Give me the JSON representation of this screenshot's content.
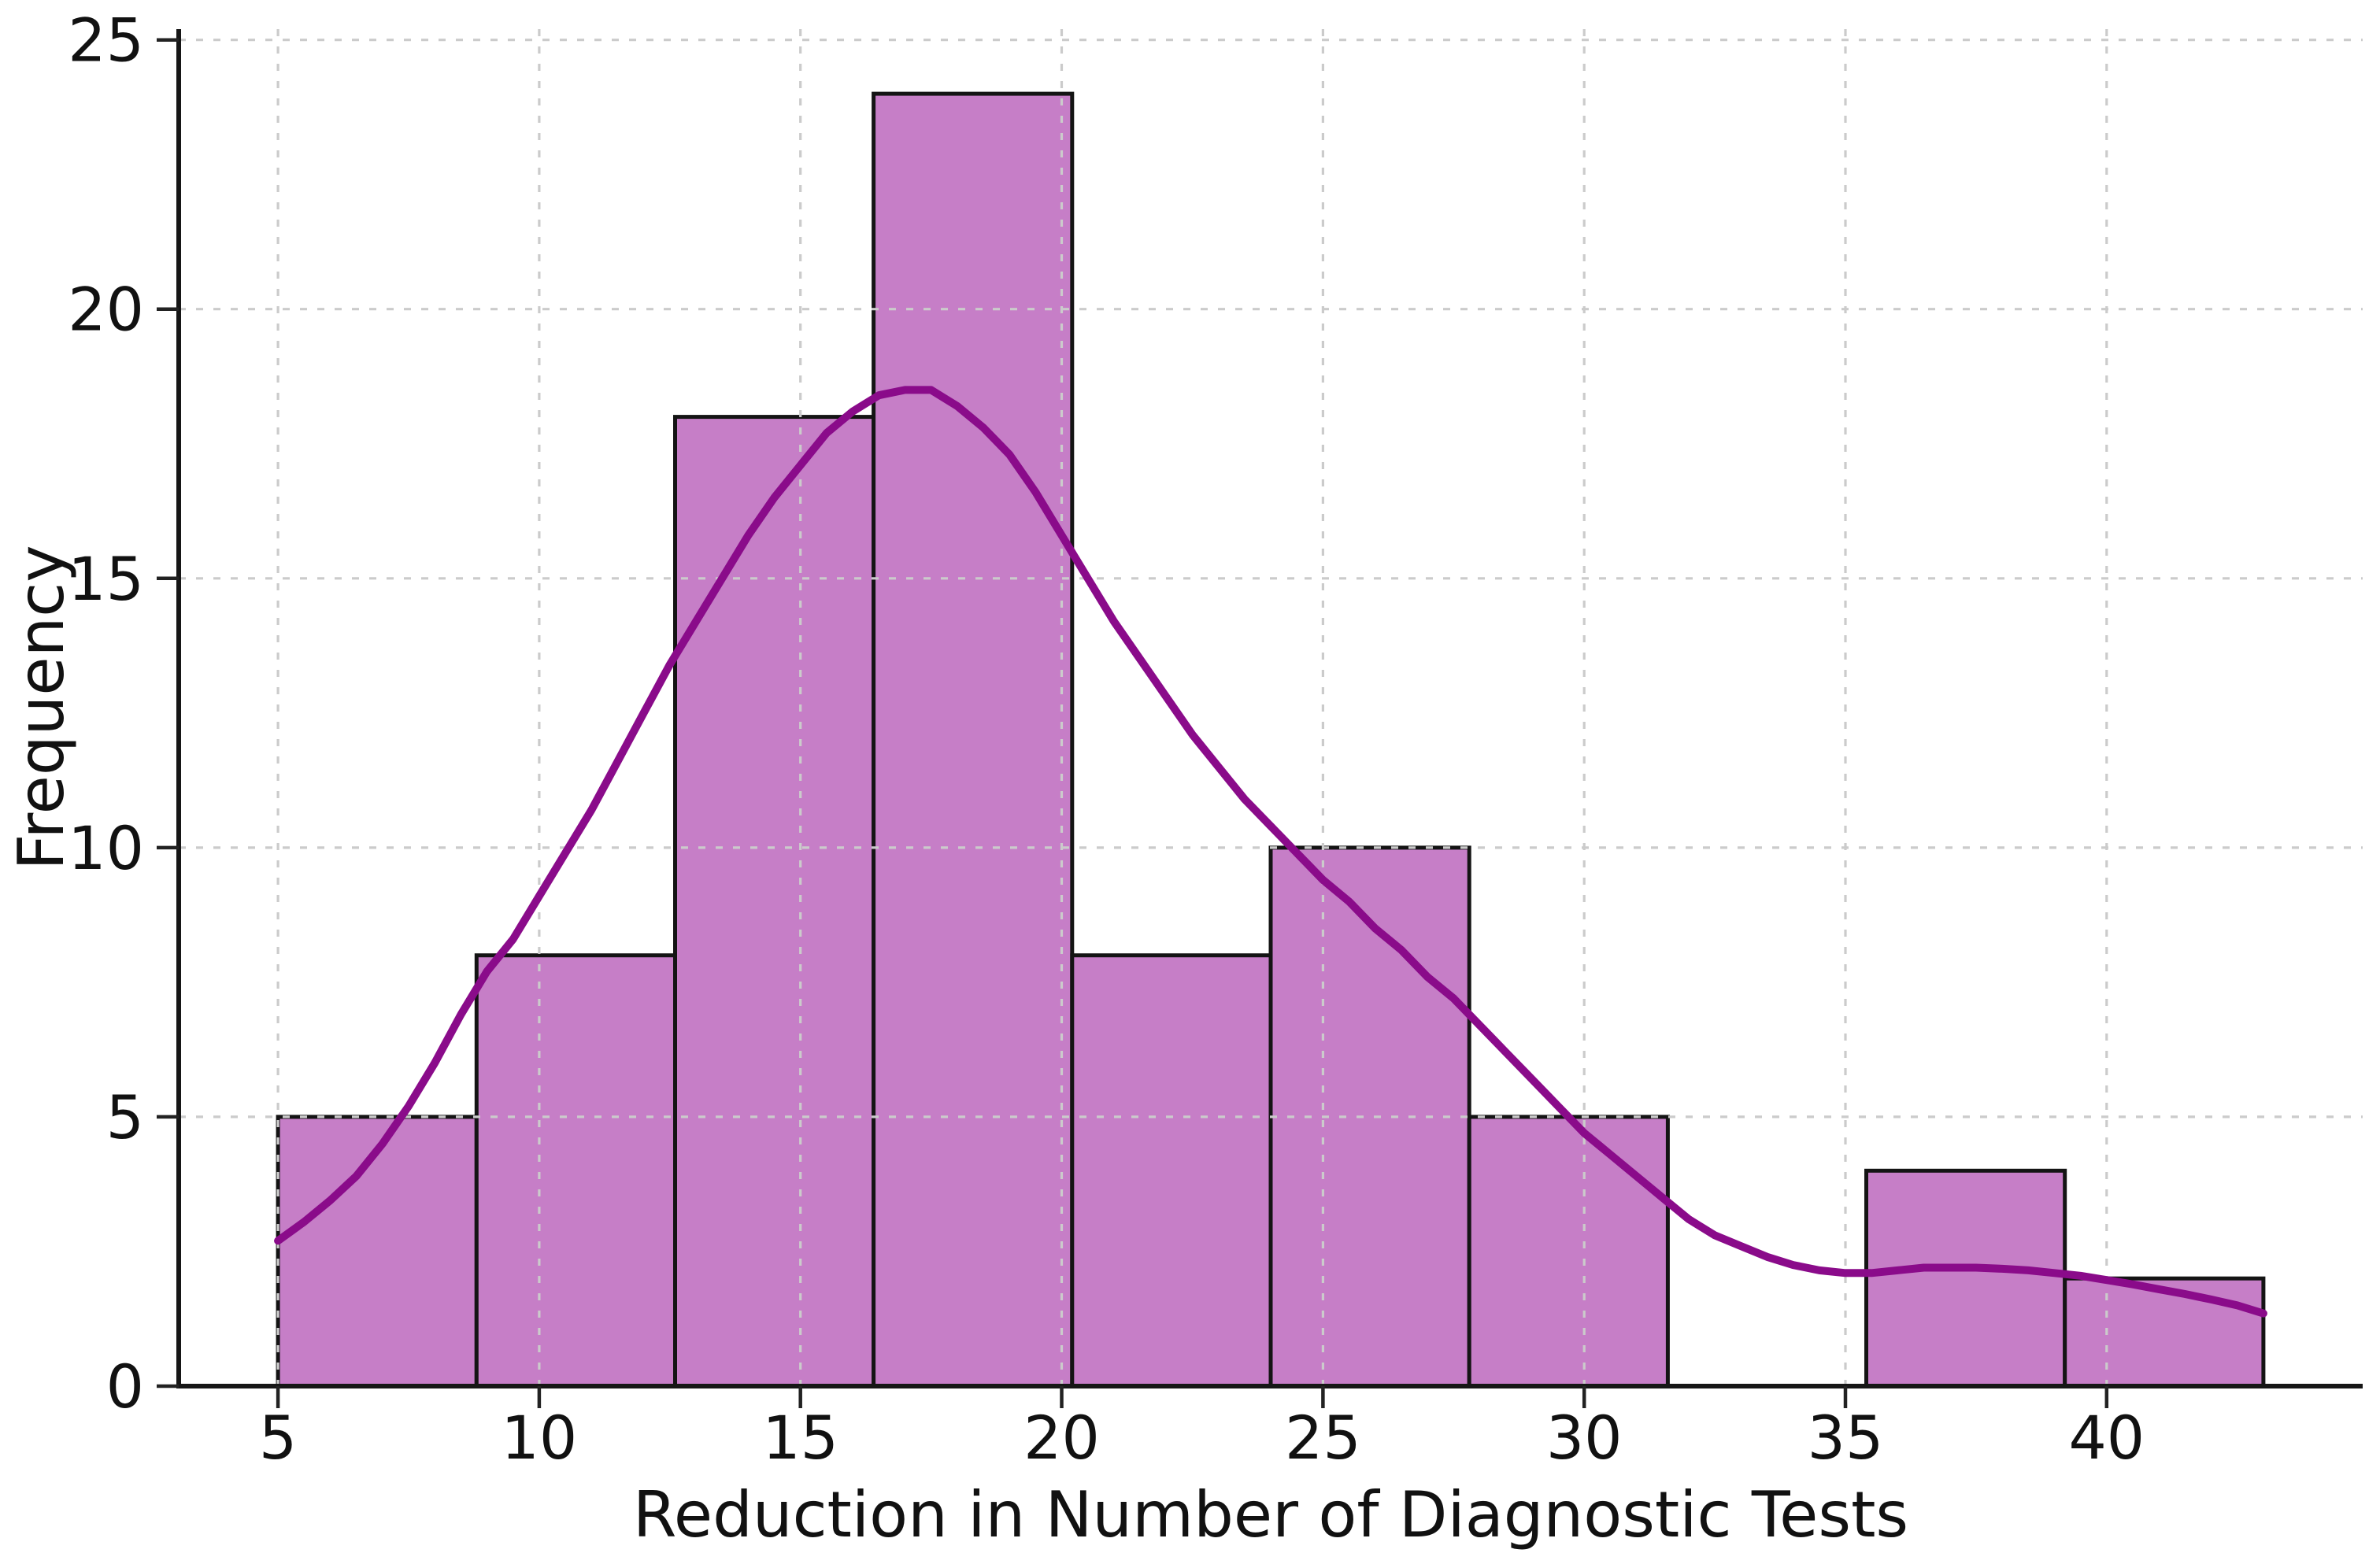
{
  "figure": {
    "background": "#ffffff"
  },
  "chart_data": {
    "type": "bar",
    "subtype": "histogram_with_kde",
    "title": "",
    "xlabel": "Reduction in Number of Diagnostic Tests",
    "ylabel": "Frequency",
    "bin_edges": [
      5.0,
      8.8,
      12.6,
      16.4,
      20.2,
      24.0,
      27.8,
      31.6,
      35.4,
      39.2,
      43.0
    ],
    "counts": [
      5,
      8,
      18,
      24,
      8,
      10,
      5,
      0,
      4,
      2
    ],
    "series": [
      {
        "name": "kde-curve",
        "x": [
          5,
          5.5,
          6,
          6.5,
          7,
          7.5,
          8,
          8.5,
          9,
          9.5,
          10,
          10.5,
          11,
          11.5,
          12,
          12.5,
          13,
          13.5,
          14,
          14.5,
          15,
          15.5,
          16,
          16.5,
          17,
          17.5,
          18,
          18.5,
          19,
          19.5,
          20,
          20.5,
          21,
          21.5,
          22,
          22.5,
          23,
          23.5,
          24,
          24.5,
          25,
          25.5,
          26,
          26.5,
          27,
          27.5,
          28,
          28.5,
          29,
          29.5,
          30,
          30.5,
          31,
          31.5,
          32,
          32.5,
          33,
          33.5,
          34,
          34.5,
          35,
          35.5,
          36,
          36.5,
          37,
          37.5,
          38,
          38.5,
          39,
          39.5,
          40,
          40.5,
          41,
          41.5,
          42,
          42.5,
          43
        ],
        "y": [
          2.7,
          3.05,
          3.45,
          3.9,
          4.5,
          5.2,
          6.0,
          6.9,
          7.7,
          8.3,
          9.1,
          9.9,
          10.7,
          11.6,
          12.5,
          13.4,
          14.2,
          15.0,
          15.8,
          16.5,
          17.1,
          17.7,
          18.1,
          18.4,
          18.5,
          18.5,
          18.2,
          17.8,
          17.3,
          16.6,
          15.8,
          15.0,
          14.2,
          13.5,
          12.8,
          12.1,
          11.5,
          10.9,
          10.4,
          9.9,
          9.4,
          9.0,
          8.5,
          8.1,
          7.6,
          7.2,
          6.7,
          6.2,
          5.7,
          5.2,
          4.7,
          4.3,
          3.9,
          3.5,
          3.1,
          2.8,
          2.6,
          2.4,
          2.25,
          2.15,
          2.1,
          2.1,
          2.15,
          2.2,
          2.2,
          2.2,
          2.18,
          2.15,
          2.1,
          2.05,
          1.97,
          1.89,
          1.8,
          1.71,
          1.61,
          1.5,
          1.35
        ]
      }
    ],
    "x_ticks": [
      5,
      10,
      15,
      20,
      25,
      30,
      35,
      40
    ],
    "x_tick_labels": [
      "5",
      "10",
      "15",
      "20",
      "25",
      "30",
      "35",
      "40"
    ],
    "y_ticks": [
      0,
      5,
      10,
      15,
      20,
      25
    ],
    "y_tick_labels": [
      "0",
      "5",
      "10",
      "15",
      "20",
      "25"
    ],
    "xlim": [
      3.1,
      44.9
    ],
    "ylim": [
      0,
      25.2
    ],
    "grid": {
      "visible": true,
      "style": "dashed",
      "horizontal_at": [
        5,
        10,
        15,
        20,
        25
      ],
      "vertical_at": [
        5,
        10,
        15,
        20,
        25,
        30,
        35,
        40
      ]
    },
    "legend": null,
    "colors": {
      "bar_fill": "#C67EC7",
      "bar_edge": "#141414",
      "kde_line": "#8A0B8A",
      "grid": "#cbcbcb",
      "axis": "#161616",
      "tick": "#222222",
      "text": "#111111",
      "background": "#ffffff"
    }
  }
}
